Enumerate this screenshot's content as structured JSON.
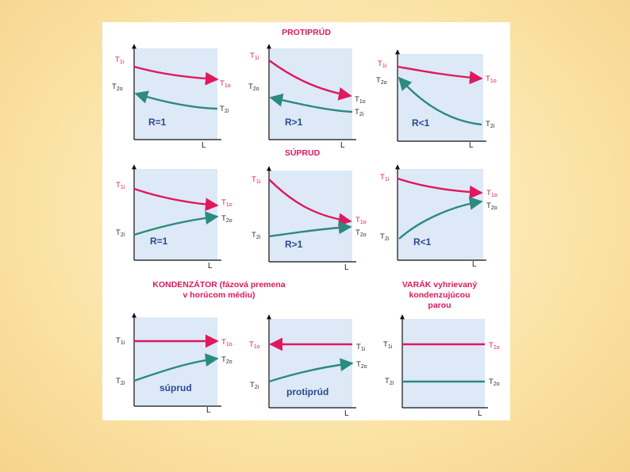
{
  "colors": {
    "hot_line": "#e0185c",
    "cold_line": "#2c8a80",
    "plot_fill": "#dde9f7",
    "axis": "#111111",
    "heading": "#e0185c",
    "note": "#2a4a92"
  },
  "sections": {
    "protiprud": "PROTIPRÚD",
    "suprud": "SÚPRUD",
    "kondenzator_line1": "KONDENZÁTOR (fázová premena",
    "kondenzator_line2": "v horúcom médiu)",
    "varak_line1": "VARÁK vyhrievaný",
    "varak_line2": "kondenzujúcou",
    "varak_line3": "parou"
  },
  "axis_x_label": "L",
  "panels": [
    {
      "id": "p1",
      "labels": {
        "a": "T",
        "a_sub": "1i",
        "b": "T",
        "b_sub": "2o",
        "c": "T",
        "c_sub": "1o",
        "d": "T",
        "d_sub": "2i"
      },
      "note": "R=1"
    },
    {
      "id": "p2",
      "labels": {
        "a": "T",
        "a_sub": "1i",
        "b": "T",
        "b_sub": "2o",
        "c": "T",
        "c_sub": "1o",
        "d": "T",
        "d_sub": "2i"
      },
      "note": "R>1"
    },
    {
      "id": "p3",
      "labels": {
        "a": "T",
        "a_sub": "1i",
        "b": "T",
        "b_sub": "2o",
        "c": "T",
        "c_sub": "1o",
        "d": "T",
        "d_sub": "2i"
      },
      "note": "R<1"
    },
    {
      "id": "p4",
      "labels": {
        "a": "T",
        "a_sub": "1i",
        "b": "T",
        "b_sub": "2i",
        "c": "T",
        "c_sub": "1o",
        "d": "T",
        "d_sub": "2o"
      },
      "note": "R=1"
    },
    {
      "id": "p5",
      "labels": {
        "a": "T",
        "a_sub": "1i",
        "b": "T",
        "b_sub": "2i",
        "c": "T",
        "c_sub": "1o",
        "d": "T",
        "d_sub": "2o"
      },
      "note": "R>1"
    },
    {
      "id": "p6",
      "labels": {
        "a": "T",
        "a_sub": "1i",
        "b": "T",
        "b_sub": "2i",
        "c": "T",
        "c_sub": "1o",
        "d": "T",
        "d_sub": "2o"
      },
      "note": "R<1"
    },
    {
      "id": "p7",
      "labels": {
        "a": "T",
        "a_sub": "1i",
        "b": "T",
        "b_sub": "2i",
        "c": "T",
        "c_sub": "1o",
        "d": "T",
        "d_sub": "2o"
      },
      "note": "súprud"
    },
    {
      "id": "p8",
      "labels": {
        "a": "T",
        "a_sub": "1o",
        "b": "T",
        "b_sub": "2i",
        "c": "T",
        "c_sub": "1i",
        "d": "T",
        "d_sub": "2o"
      },
      "note": "protiprúd"
    },
    {
      "id": "p9",
      "labels": {
        "a": "T",
        "a_sub": "1i",
        "b": "T",
        "b_sub": "2i",
        "c": "T",
        "c_sub": "1o",
        "d": "T",
        "d_sub": "2o"
      },
      "note": ""
    }
  ]
}
